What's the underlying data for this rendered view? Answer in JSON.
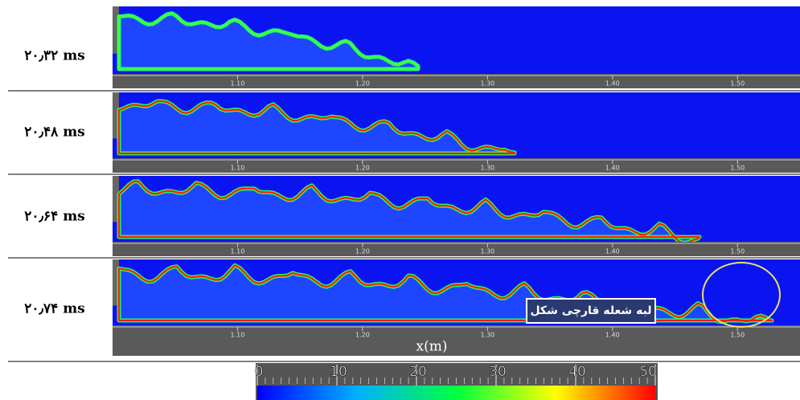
{
  "panels": [
    {
      "time": "۲۰٫۳۲ ms"
    },
    {
      "time": "۲۰٫۴۸ ms"
    },
    {
      "time": "۲۰٫۶۴ ms"
    },
    {
      "time": "۲۰٫۷۴ ms"
    }
  ],
  "x_axis": {
    "xlim": [
      1.0,
      1.55
    ],
    "xticks": [
      {
        "value": 1.1,
        "label": "1.10"
      },
      {
        "value": 1.2,
        "label": "1.20"
      },
      {
        "value": 1.3,
        "label": "1.30"
      },
      {
        "value": 1.4,
        "label": "1.40"
      },
      {
        "value": 1.5,
        "label": "1.50"
      }
    ],
    "xlabel": "x(m)"
  },
  "annotation": "لبه شعله قارچی شکل",
  "colorbar": {
    "lim": [
      0,
      50
    ],
    "ticks": [
      0,
      10,
      20,
      30,
      40,
      50
    ]
  }
}
